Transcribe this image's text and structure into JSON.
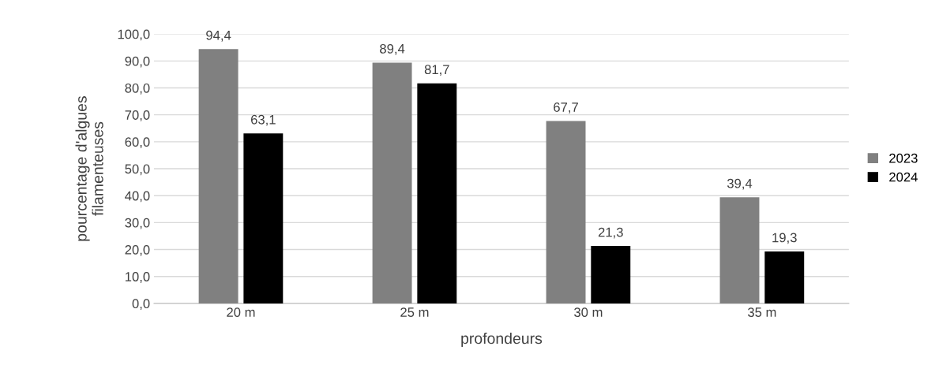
{
  "chart_data": {
    "type": "bar",
    "xlabel": "profondeurs",
    "ylabel": "pourcentage d'algues\nfilamenteuses",
    "categories": [
      "20 m",
      "25 m",
      "30 m",
      "35 m"
    ],
    "series": [
      {
        "name": "2023",
        "color": "#808080",
        "values": [
          94.4,
          89.4,
          67.7,
          39.4
        ],
        "value_labels": [
          "94,4",
          "89,4",
          "67,7",
          "39,4"
        ]
      },
      {
        "name": "2024",
        "color": "#000000",
        "values": [
          63.1,
          81.7,
          21.3,
          19.3
        ],
        "value_labels": [
          "63,1",
          "81,7",
          "21,3",
          "19,3"
        ]
      }
    ],
    "ylim": [
      0,
      100
    ],
    "yticks": [
      {
        "value": 0,
        "label": "0,0"
      },
      {
        "value": 10,
        "label": "10,0"
      },
      {
        "value": 20,
        "label": "20,0"
      },
      {
        "value": 30,
        "label": "30,0"
      },
      {
        "value": 40,
        "label": "40,0"
      },
      {
        "value": 50,
        "label": "50,0"
      },
      {
        "value": 60,
        "label": "60,0"
      },
      {
        "value": 70,
        "label": "70,0"
      },
      {
        "value": 80,
        "label": "80,0"
      },
      {
        "value": 90,
        "label": "90,0"
      },
      {
        "value": 100,
        "label": "100,0"
      }
    ],
    "grid": "y",
    "legend": "right"
  }
}
